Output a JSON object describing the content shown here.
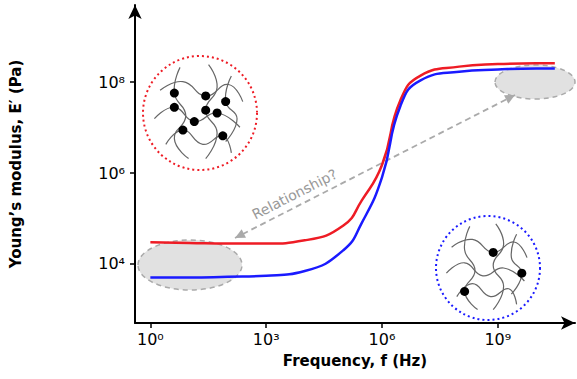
{
  "chart_data": {
    "type": "line",
    "x_label": "Frequency, f (Hz)",
    "y_label": "Young’s modulus, E′ (Pa)",
    "log": true,
    "grid": false,
    "x": [
      1,
      10,
      100,
      1000,
      10000,
      100000,
      300000,
      1000000,
      3000000,
      10000000,
      100000000,
      1000000000,
      10000000000,
      30000000000
    ],
    "series": [
      {
        "color": "#ee1c25",
        "values": [
          30000,
          29000,
          28000,
          28000,
          33000,
          70000,
          250000,
          1500000,
          40000000,
          140000000,
          220000000,
          250000000,
          260000000,
          260000000
        ]
      },
      {
        "color": "#1a1aff",
        "values": [
          5000,
          5000,
          5200,
          5500,
          7000,
          20000,
          80000,
          800000,
          30000000,
          110000000,
          170000000,
          190000000,
          200000000,
          200000000
        ]
      }
    ],
    "xlim": [
      0.4,
      100000000000
    ],
    "ylim": [
      500,
      5000000000
    ],
    "xticks": [
      {
        "value": 1,
        "label": "10⁰"
      },
      {
        "value": 1000,
        "label": "10³"
      },
      {
        "value": 1000000,
        "label": "10⁶"
      },
      {
        "value": 1000000000,
        "label": "10⁹"
      }
    ],
    "yticks": [
      {
        "value": 10000,
        "label": "10⁴"
      },
      {
        "value": 1000000,
        "label": "10⁶"
      },
      {
        "value": 100000000,
        "label": "10⁸"
      }
    ],
    "annotations": [
      "Relationship?"
    ]
  }
}
